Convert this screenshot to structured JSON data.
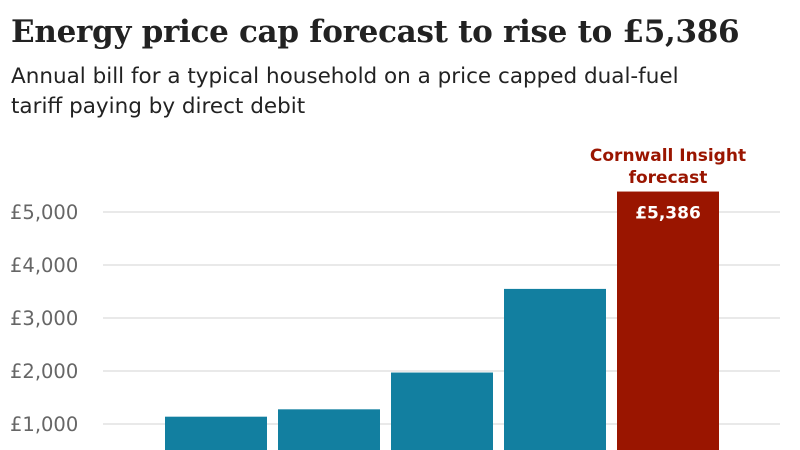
{
  "header": {
    "title": "Energy price cap forecast to rise to £5,386",
    "subtitle": "Annual bill for a typical household on a price capped dual-fuel tariff paying by direct debit"
  },
  "chart_data": {
    "type": "bar",
    "title": "Energy price cap forecast to rise to £5,386",
    "subtitle": "Annual bill for a typical household on a price capped dual-fuel tariff paying by direct debit",
    "xlabel": "",
    "ylabel": "",
    "categories": [
      "",
      "",
      "",
      "",
      ""
    ],
    "values": [
      1138,
      1277,
      1971,
      3549,
      5386
    ],
    "colors": [
      "#127fa0",
      "#127fa0",
      "#127fa0",
      "#127fa0",
      "#9a1500"
    ],
    "highlight": {
      "index": 4,
      "annotation": [
        "Cornwall Insight",
        "forecast"
      ],
      "data_label": "£5,386",
      "color": "#9a1500"
    },
    "yticks": [
      1000,
      2000,
      3000,
      4000,
      5000
    ],
    "ytick_labels": [
      "£1,000",
      "£2,000",
      "£3,000",
      "£4,000",
      "£5,000"
    ],
    "ylim": [
      0,
      5400
    ],
    "grid": true,
    "legend": "none"
  }
}
